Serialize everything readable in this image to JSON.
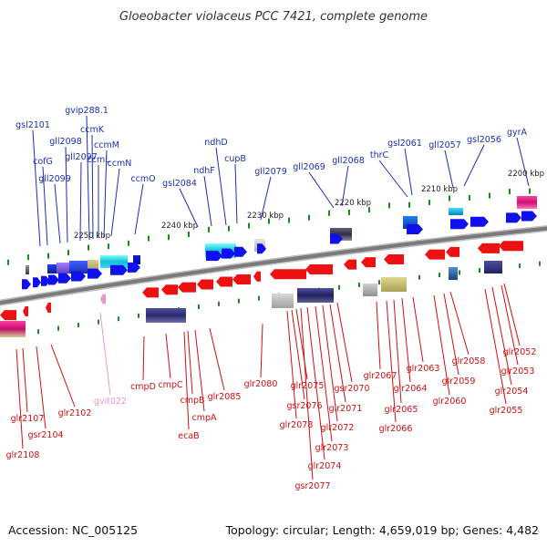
{
  "title": "Gloeobacter violaceus PCC 7421, complete genome",
  "footer": {
    "accession": "Accession: NC_005125",
    "topology": "Topology: circular; Length: 4,659,019 bp; Genes: 4,482"
  },
  "colors": {
    "forward_label": "#1a2fb0",
    "reverse_label": "#d01010",
    "pseudo_label": "#e898c8",
    "forward_arrow": "#1010ee",
    "reverse_arrow": "#ee1111",
    "backbone": "#808080",
    "tick": "#1a8a1a"
  },
  "scale": {
    "ticks": [
      "2200 kbp",
      "2210 kbp",
      "2220 kbp",
      "2230 kbp",
      "2240 kbp",
      "2250 kbp"
    ]
  },
  "forward_genes": [
    "gyrA",
    "gsl2056",
    "gll2057",
    "gsl2061",
    "thrC",
    "gll2068",
    "gll2069",
    "gll2079",
    "cupB",
    "ndhD",
    "ndhF",
    "gsl2084",
    "ccmO",
    "ccmN",
    "ccmM",
    "ccmL",
    "ccmK",
    "gvip288.1",
    "gll2097",
    "gll2098",
    "gll2099",
    "cofG",
    "gsl2101"
  ],
  "reverse_genes": [
    "glr2052",
    "glr2053",
    "glr2054",
    "glr2055",
    "glr2058",
    "glr2059",
    "glr2060",
    "glr2063",
    "glr2064",
    "glr2065",
    "glr2066",
    "glr2067",
    "gsr2070",
    "glr2071",
    "glr2072",
    "glr2073",
    "glr2074",
    "gsr2077",
    "glr2075",
    "gsr2076",
    "glr2078",
    "glr2080",
    "glr2085",
    "cmpA",
    "cmpB",
    "ecaB",
    "cmpC",
    "cmpD",
    "glr2102",
    "gsr2104",
    "glr2107",
    "glr2108"
  ],
  "pseudo_genes": [
    "gvit022"
  ]
}
